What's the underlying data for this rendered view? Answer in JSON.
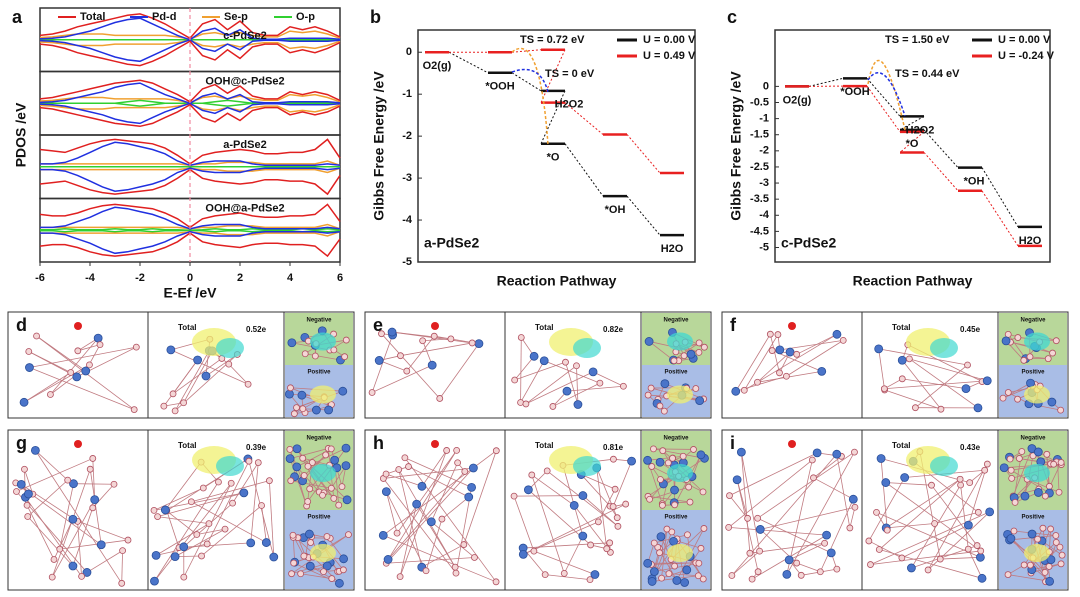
{
  "chart_data": [
    {
      "type": "pdos",
      "letter": "a",
      "xlabel": "E-Ef /eV",
      "ylabel": "PDOS /eV",
      "xlim": [
        -6,
        6
      ],
      "xticks": [
        -6,
        -4,
        -2,
        0,
        2,
        4,
        6
      ],
      "ylim": [
        -1,
        1
      ],
      "x": [
        -6,
        -5.5,
        -5,
        -4.5,
        -4,
        -3.5,
        -3,
        -2.5,
        -2,
        -1.5,
        -1,
        -0.5,
        0,
        0.5,
        1,
        1.5,
        2,
        2.5,
        3,
        3.5,
        4,
        4.5,
        5,
        5.5,
        6
      ],
      "series": [
        {
          "name": "Total",
          "color": "#e02020"
        },
        {
          "name": "Pd-d",
          "color": "#2030e0"
        },
        {
          "name": "Se-p",
          "color": "#f0a030"
        },
        {
          "name": "O-p",
          "color": "#30d030"
        }
      ],
      "panels": [
        {
          "label": "c-PdSe2",
          "color": "#8a2be2",
          "values": [
            [
              0.15,
              0.2,
              0.3,
              0.45,
              0.55,
              0.65,
              0.75,
              0.85,
              0.9,
              0.75,
              0.55,
              0.3,
              0.05,
              0.55,
              0.7,
              0.35,
              0.65,
              0.25,
              0.15,
              0.15,
              0.45,
              0.35,
              0.45,
              0.3,
              0.1
            ],
            [
              0.03,
              0.05,
              0.1,
              0.2,
              0.3,
              0.45,
              0.6,
              0.7,
              0.75,
              0.55,
              0.35,
              0.15,
              0,
              0.3,
              0.4,
              0.15,
              0.35,
              0.05,
              0.02,
              0.02,
              0.05,
              0.05,
              0.05,
              0.05,
              0.02
            ],
            [
              0.08,
              0.1,
              0.15,
              0.2,
              0.2,
              0.2,
              0.15,
              0.15,
              0.15,
              0.15,
              0.15,
              0.1,
              0.02,
              0.2,
              0.25,
              0.15,
              0.25,
              0.15,
              0.1,
              0.1,
              0.3,
              0.25,
              0.3,
              0.2,
              0.05
            ],
            [
              0,
              0,
              0,
              0,
              0,
              0,
              0,
              0,
              0,
              0,
              0,
              0,
              0,
              0,
              0,
              0,
              0,
              0,
              0,
              0,
              0,
              0,
              0,
              0,
              0
            ]
          ]
        },
        {
          "label": "OOH@c-PdSe2",
          "color": "#8a2be2",
          "values": [
            [
              0.15,
              0.2,
              0.3,
              0.4,
              0.5,
              0.6,
              0.7,
              0.75,
              0.8,
              0.7,
              0.5,
              0.3,
              0.05,
              0.5,
              0.65,
              0.35,
              0.6,
              0.25,
              0.15,
              0.15,
              0.4,
              0.3,
              0.4,
              0.3,
              0.1
            ],
            [
              0.03,
              0.05,
              0.1,
              0.2,
              0.3,
              0.4,
              0.55,
              0.65,
              0.7,
              0.5,
              0.3,
              0.15,
              0,
              0.25,
              0.35,
              0.15,
              0.3,
              0.05,
              0.02,
              0.02,
              0.05,
              0.05,
              0.05,
              0.05,
              0.02
            ],
            [
              0.08,
              0.1,
              0.15,
              0.2,
              0.2,
              0.2,
              0.15,
              0.15,
              0.15,
              0.15,
              0.15,
              0.1,
              0.02,
              0.2,
              0.25,
              0.15,
              0.25,
              0.15,
              0.1,
              0.1,
              0.3,
              0.25,
              0.3,
              0.2,
              0.05
            ],
            [
              0,
              0,
              0,
              0,
              0,
              0,
              0,
              0.05,
              0.1,
              0.05,
              0,
              0,
              0,
              0,
              0.05,
              0.1,
              0.05,
              0,
              0,
              0,
              0,
              0,
              0,
              0,
              0
            ]
          ]
        },
        {
          "label": "a-PdSe2",
          "color": "#f08080",
          "values": [
            [
              0.6,
              0.55,
              0.5,
              0.65,
              0.8,
              0.9,
              0.95,
              0.9,
              0.85,
              0.8,
              0.65,
              0.4,
              0.1,
              0.4,
              0.5,
              0.55,
              0.6,
              0.55,
              0.45,
              0.45,
              0.5,
              0.5,
              0.6,
              0.95,
              0.3
            ],
            [
              0.1,
              0.1,
              0.15,
              0.3,
              0.5,
              0.7,
              0.85,
              0.8,
              0.7,
              0.6,
              0.45,
              0.2,
              0.05,
              0.15,
              0.2,
              0.2,
              0.2,
              0.1,
              0.05,
              0.05,
              0.05,
              0.05,
              0.05,
              0.1,
              0.05
            ],
            [
              0.1,
              0.1,
              0.1,
              0.1,
              0.1,
              0.1,
              0.1,
              0.1,
              0.1,
              0.1,
              0.1,
              0.1,
              0.05,
              0.1,
              0.1,
              0.15,
              0.15,
              0.15,
              0.1,
              0.1,
              0.1,
              0.1,
              0.1,
              0.2,
              0.05
            ],
            [
              0,
              0,
              0,
              0,
              0,
              0,
              0,
              0,
              0,
              0,
              0,
              0,
              0,
              0,
              0,
              0,
              0,
              0,
              0,
              0,
              0,
              0,
              0,
              0,
              0
            ]
          ]
        },
        {
          "label": "OOH@a-PdSe2",
          "color": "#f08080",
          "values": [
            [
              0.55,
              0.5,
              0.5,
              0.6,
              0.75,
              0.85,
              0.9,
              0.85,
              0.8,
              0.75,
              0.6,
              0.4,
              0.1,
              0.4,
              0.5,
              0.55,
              0.6,
              0.5,
              0.45,
              0.45,
              0.5,
              0.5,
              0.55,
              0.9,
              0.3
            ],
            [
              0.1,
              0.1,
              0.15,
              0.3,
              0.45,
              0.65,
              0.8,
              0.75,
              0.65,
              0.55,
              0.4,
              0.2,
              0.05,
              0.15,
              0.2,
              0.2,
              0.2,
              0.1,
              0.05,
              0.05,
              0.05,
              0.05,
              0.05,
              0.1,
              0.05
            ],
            [
              0.1,
              0.1,
              0.1,
              0.1,
              0.1,
              0.1,
              0.1,
              0.1,
              0.1,
              0.1,
              0.1,
              0.1,
              0.05,
              0.1,
              0.1,
              0.15,
              0.15,
              0.15,
              0.1,
              0.1,
              0.1,
              0.1,
              0.1,
              0.2,
              0.05
            ],
            [
              0.02,
              0.02,
              0.05,
              0.02,
              0.02,
              0.02,
              0.05,
              0.02,
              0.02,
              0.05,
              0.02,
              0.02,
              0,
              0.02,
              0.05,
              0.02,
              0.02,
              0.05,
              0.02,
              0.02,
              0.02,
              0.05,
              0.02,
              0.05,
              0.02
            ]
          ]
        }
      ]
    },
    {
      "type": "levels",
      "letter": "b",
      "xlabel": "Reaction Pathway",
      "ylabel": "Gibbs Free Energy /eV",
      "ylim": [
        -5,
        0.53
      ],
      "yticks": [
        0,
        -1,
        -2,
        -3,
        -4,
        -5
      ],
      "categories": [
        "O2(g)",
        "*OOH",
        "H2O2",
        "*O",
        "*OH",
        "H2O"
      ],
      "series": [
        {
          "name": "U = 0.00 V",
          "color": "#111111",
          "values": [
            0,
            -0.49,
            -0.92,
            -2.18,
            -3.43,
            -4.36
          ]
        },
        {
          "name": "U = 0.49 V",
          "color": "#e82020",
          "values": [
            0,
            0,
            0.06,
            -1.2,
            -1.96,
            -2.88
          ]
        }
      ],
      "annotations": [
        {
          "text": "TS = 0.72 eV",
          "color": "#f0a030"
        },
        {
          "text": "TS = 0 eV",
          "color": "#2030e0"
        }
      ],
      "sample": "a-PdSe2"
    },
    {
      "type": "levels",
      "letter": "c",
      "xlabel": "Reaction Pathway",
      "ylabel": "Gibbs Free Energy /eV",
      "ylim": [
        -5.45,
        1.75
      ],
      "yticks": [
        0,
        -0.5,
        -1,
        -1.5,
        -2,
        -2.5,
        -3,
        -3.5,
        -4,
        -4.5,
        -5
      ],
      "categories": [
        "O2(g)",
        "*OOH",
        "H2O2",
        "*O",
        "*OH",
        "H2O"
      ],
      "series": [
        {
          "name": "U = 0.00 V",
          "color": "#111111",
          "values": [
            0,
            0.25,
            -0.93,
            -1.35,
            -2.52,
            -4.36
          ]
        },
        {
          "name": "U = -0.24 V",
          "color": "#e82020",
          "values": [
            0,
            0.01,
            -1.41,
            -2.05,
            -3.24,
            -4.95
          ]
        }
      ],
      "annotations": [
        {
          "text": "TS = 1.50 eV",
          "color": "#f0a030"
        },
        {
          "text": "TS = 0.44 eV",
          "color": "#2030e0"
        }
      ],
      "sample": "c-PdSe2"
    }
  ],
  "structure_panels": [
    {
      "letter": "d",
      "total": "Total",
      "charge": "0.52e",
      "negative": "Negative",
      "positive": "Positive"
    },
    {
      "letter": "e",
      "total": "Total",
      "charge": "0.82e",
      "negative": "Negative",
      "positive": "Positive"
    },
    {
      "letter": "f",
      "total": "Total",
      "charge": "0.45e",
      "negative": "Negative",
      "positive": "Positive"
    },
    {
      "letter": "g",
      "total": "Total",
      "charge": "0.39e",
      "negative": "Negative",
      "positive": "Positive"
    },
    {
      "letter": "h",
      "total": "Total",
      "charge": "0.81e",
      "negative": "Negative",
      "positive": "Positive"
    },
    {
      "letter": "i",
      "total": "Total",
      "charge": "0.43e",
      "negative": "Negative",
      "positive": "Positive"
    }
  ]
}
